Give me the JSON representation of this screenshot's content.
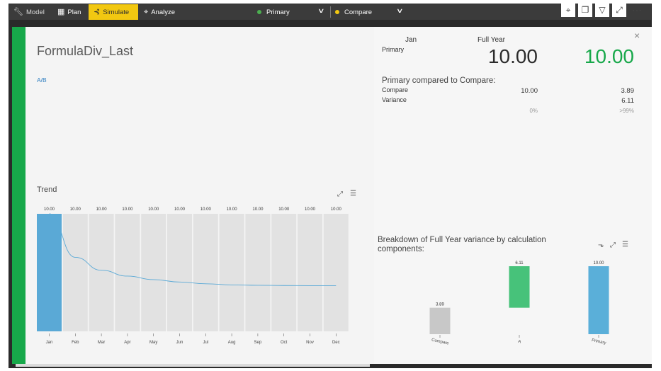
{
  "toolbar": {
    "model": "Model",
    "plan": "Plan",
    "simulate": "Simulate",
    "analyze": "Analyze",
    "primary": "Primary",
    "compare": "Compare",
    "primary_color": "#4caf50",
    "compare_color": "#f2c811",
    "simulate_color": "#f2c811"
  },
  "modal": {
    "title": "FormulaDiv_Last",
    "formula": "A/B",
    "close": "×",
    "trend_title": "Trend",
    "header_period": "Jan",
    "header_full_year": "Full Year",
    "primary_label": "Primary",
    "primary_jan": "10.00",
    "primary_full_year": "10.00",
    "compared_heading": "Primary compared to Compare:",
    "compare_label": "Compare",
    "compare_jan": "10.00",
    "compare_full_year": "3.89",
    "variance_label": "Variance",
    "variance_full_year": "6.11",
    "variance_pct_jan": "0%",
    "variance_pct_full_year": ">99%",
    "breakdown_title": "Breakdown of Full Year variance by calculation components:",
    "accent_color": "#17a84a",
    "full_year_color": "#17a84a"
  },
  "chart_data": [
    {
      "type": "bar",
      "title": "Trend",
      "categories": [
        "Jan",
        "Feb",
        "Mar",
        "Apr",
        "May",
        "Jun",
        "Jul",
        "Aug",
        "Sep",
        "Oct",
        "Nov",
        "Dec"
      ],
      "bar_labels": [
        "10.00",
        "10.00",
        "10.00",
        "10.00",
        "10.00",
        "10.00",
        "10.00",
        "10.00",
        "10.00",
        "10.00",
        "10.00",
        "10.00"
      ],
      "values": [
        10,
        10,
        10,
        10,
        10,
        10,
        10,
        10,
        10,
        10,
        10,
        10
      ],
      "highlighted": "Jan",
      "line_values": [
        10.0,
        6.3,
        5.2,
        4.7,
        4.4,
        4.2,
        4.05,
        3.95,
        3.92,
        3.9,
        3.89,
        3.89
      ],
      "highlight_color": "#5aa9d6",
      "bar_color": "#e2e2e2",
      "line_color": "#5aa9d6",
      "ylim": [
        0,
        10
      ]
    },
    {
      "type": "bar",
      "title": "Breakdown of Full Year variance by calculation components:",
      "categories": [
        "Compare",
        "A",
        "Primary"
      ],
      "bar_labels": [
        "3.89",
        "6.11",
        "10.00"
      ],
      "bars": [
        {
          "base": 0,
          "value": 3.89,
          "color": "#c8c8c8"
        },
        {
          "base": 3.89,
          "value": 6.11,
          "color": "#47c27a"
        },
        {
          "base": 0,
          "value": 10.0,
          "color": "#5aafd9"
        }
      ],
      "ylim": [
        0,
        10
      ]
    }
  ]
}
